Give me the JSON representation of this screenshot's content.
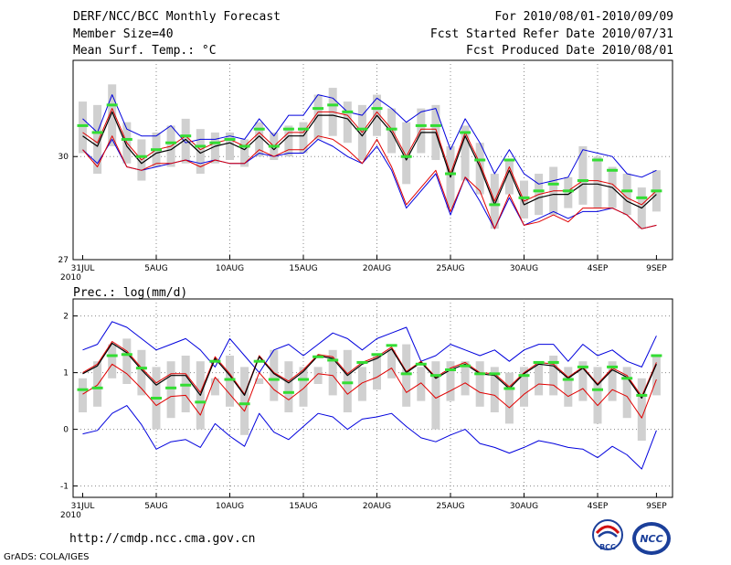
{
  "header": {
    "title": "DERF/NCC/BCC Monthly Forecast",
    "member_size": "Member Size=40",
    "variable_title": "Mean Surf. Temp.: °C",
    "forecast_period": "For 2010/08/01-2010/09/09",
    "started_refer": "Fcst Started Refer Date 2010/07/31",
    "produced": "Fcst Produced Date 2010/08/01"
  },
  "footer": {
    "url": "http://cmdp.ncc.cma.gov.cn",
    "grads": "GrADS: COLA/IGES",
    "logo_bcc_text": "BCC",
    "logo_ncc_text": "NCC"
  },
  "colors": {
    "ensemble_mean": "#000000",
    "member_median": "#e00000",
    "spread_bounds": "#0000dd",
    "box": "#d0d0d0",
    "marker": "#33dd33",
    "grid": "#888888"
  },
  "chart_data": [
    {
      "type": "line",
      "title": "Mean Surf. Temp.: °C",
      "x_tick_labels": [
        "31JUL",
        "5AUG",
        "10AUG",
        "15AUG",
        "20AUG",
        "25AUG",
        "30AUG",
        "4SEP",
        "9SEP"
      ],
      "x_year_label": "2010",
      "ylim": [
        27,
        32.8
      ],
      "y_ticks": [
        27,
        30
      ],
      "grid": true,
      "series": [
        {
          "name": "upper",
          "values": [
            31.1,
            30.7,
            31.8,
            30.8,
            30.6,
            30.6,
            30.9,
            30.4,
            30.5,
            30.5,
            30.6,
            30.5,
            31.1,
            30.6,
            31.2,
            31.2,
            31.8,
            31.7,
            31.3,
            31.2,
            31.7,
            31.4,
            31.0,
            31.3,
            31.4,
            30.2,
            31.1,
            30.4,
            29.5,
            30.2,
            29.5,
            29.2,
            29.3,
            29.4,
            30.2,
            30.1,
            30.0,
            29.5,
            29.4,
            29.6
          ]
        },
        {
          "name": "box_top",
          "values": [
            31.6,
            31.5,
            32.1,
            31.0,
            30.5,
            30.7,
            30.9,
            31.1,
            30.8,
            30.7,
            30.7,
            30.5,
            31.0,
            30.7,
            30.9,
            31.0,
            31.8,
            32.0,
            31.6,
            31.5,
            31.8,
            31.4,
            31.0,
            31.4,
            31.5,
            30.3,
            30.9,
            30.4,
            29.5,
            29.9,
            29.3,
            29.5,
            29.7,
            29.4,
            30.3,
            30.0,
            29.7,
            29.5,
            29.1,
            29.6
          ]
        },
        {
          "name": "marker",
          "values": [
            30.9,
            30.7,
            31.5,
            30.5,
            30.0,
            30.2,
            30.4,
            30.6,
            30.3,
            30.4,
            30.5,
            30.3,
            30.8,
            30.3,
            30.8,
            30.8,
            31.4,
            31.5,
            31.3,
            30.8,
            31.4,
            30.8,
            30.0,
            30.9,
            30.9,
            29.5,
            30.7,
            29.9,
            28.6,
            29.9,
            28.8,
            29.0,
            29.2,
            29.0,
            29.3,
            29.9,
            29.6,
            29.0,
            28.8,
            29.0
          ]
        },
        {
          "name": "ensemble_mean",
          "values": [
            30.6,
            30.3,
            31.3,
            30.3,
            29.8,
            30.1,
            30.2,
            30.5,
            30.1,
            30.3,
            30.4,
            30.2,
            30.6,
            30.2,
            30.6,
            30.6,
            31.2,
            31.2,
            31.1,
            30.6,
            31.2,
            30.7,
            29.9,
            30.7,
            30.7,
            29.4,
            30.6,
            29.7,
            28.6,
            29.6,
            28.6,
            28.8,
            28.9,
            28.9,
            29.2,
            29.2,
            29.1,
            28.7,
            28.5,
            28.9
          ]
        },
        {
          "name": "member_median",
          "values": [
            30.7,
            30.4,
            31.4,
            30.4,
            29.9,
            30.2,
            30.3,
            30.6,
            30.2,
            30.4,
            30.5,
            30.3,
            30.7,
            30.3,
            30.7,
            30.7,
            31.3,
            31.3,
            31.2,
            30.7,
            31.3,
            30.8,
            30.0,
            30.8,
            30.8,
            29.5,
            30.7,
            29.8,
            28.7,
            29.7,
            28.7,
            28.9,
            29.0,
            29.0,
            29.3,
            29.3,
            29.2,
            28.8,
            28.6,
            29.0
          ]
        },
        {
          "name": "box_bottom",
          "values": [
            30.1,
            29.5,
            30.3,
            29.8,
            29.3,
            29.7,
            29.7,
            29.8,
            29.5,
            29.8,
            29.9,
            29.7,
            30.0,
            29.9,
            30.0,
            30.1,
            30.5,
            30.6,
            30.4,
            29.9,
            30.6,
            30.1,
            29.2,
            30.1,
            29.9,
            28.5,
            29.3,
            28.9,
            27.9,
            28.9,
            28.2,
            28.3,
            28.3,
            28.5,
            28.6,
            28.5,
            28.5,
            28.3,
            27.9,
            28.4
          ]
        },
        {
          "name": "lower",
          "values": [
            30.2,
            29.7,
            30.6,
            29.7,
            29.6,
            29.8,
            29.8,
            29.9,
            29.7,
            29.9,
            29.8,
            29.8,
            30.2,
            30.0,
            30.2,
            30.2,
            30.6,
            30.5,
            30.2,
            29.8,
            30.5,
            29.7,
            28.6,
            29.1,
            29.6,
            28.4,
            29.4,
            29.0,
            27.9,
            28.9,
            28.0,
            28.1,
            28.3,
            28.1,
            28.5,
            28.5,
            28.5,
            28.3,
            27.9,
            28.0
          ]
        },
        {
          "name": "lowest",
          "values": [
            30.2,
            29.8,
            30.5,
            29.7,
            29.6,
            29.7,
            29.8,
            29.9,
            29.8,
            29.9,
            29.8,
            29.8,
            30.1,
            30.0,
            30.1,
            30.1,
            30.5,
            30.3,
            30.0,
            29.8,
            30.3,
            29.6,
            28.5,
            29.0,
            29.5,
            28.3,
            29.4,
            28.7,
            27.9,
            28.8,
            28.0,
            28.2,
            28.4,
            28.2,
            28.4,
            28.4,
            28.5,
            28.3,
            27.9,
            28.0
          ]
        }
      ]
    },
    {
      "type": "line",
      "title": "Prec.: log(mm/d)",
      "x_tick_labels": [
        "31JUL",
        "5AUG",
        "10AUG",
        "15AUG",
        "20AUG",
        "25AUG",
        "30AUG",
        "4SEP",
        "9SEP"
      ],
      "x_year_label": "2010",
      "ylim": [
        -1.2,
        2.3
      ],
      "y_ticks": [
        -1,
        0,
        1,
        2
      ],
      "grid": true,
      "series": [
        {
          "name": "upper",
          "values": [
            1.4,
            1.5,
            1.9,
            1.8,
            1.6,
            1.4,
            1.5,
            1.6,
            1.4,
            1.1,
            1.6,
            1.3,
            1.0,
            1.4,
            1.5,
            1.3,
            1.5,
            1.7,
            1.6,
            1.4,
            1.6,
            1.7,
            1.8,
            1.2,
            1.3,
            1.5,
            1.4,
            1.3,
            1.4,
            1.2,
            1.4,
            1.5,
            1.5,
            1.2,
            1.5,
            1.3,
            1.4,
            1.2,
            1.1,
            1.65
          ]
        },
        {
          "name": "box_top",
          "values": [
            0.9,
            1.2,
            1.5,
            1.6,
            1.4,
            1.1,
            1.2,
            1.3,
            1.2,
            0.9,
            1.3,
            1.1,
            0.9,
            1.4,
            1.2,
            1.1,
            1.1,
            1.4,
            1.4,
            1.1,
            1.3,
            1.4,
            1.5,
            1.1,
            1.2,
            1.2,
            1.2,
            1.2,
            1.1,
            1.0,
            1.1,
            1.2,
            1.3,
            1.1,
            1.2,
            1.1,
            1.2,
            1.1,
            0.9,
            1.3
          ]
        },
        {
          "name": "marker",
          "values": [
            0.7,
            0.73,
            1.3,
            1.32,
            1.08,
            0.55,
            0.73,
            0.78,
            0.48,
            1.2,
            0.88,
            0.45,
            1.2,
            0.88,
            0.65,
            0.88,
            1.28,
            1.22,
            0.82,
            1.18,
            1.32,
            1.48,
            0.98,
            1.15,
            0.95,
            1.05,
            1.12,
            0.98,
            0.98,
            0.72,
            0.95,
            1.18,
            1.18,
            0.88,
            1.1,
            0.7,
            1.1,
            0.9,
            0.6,
            1.3
          ]
        },
        {
          "name": "ensemble_mean",
          "values": [
            0.98,
            1.12,
            1.52,
            1.35,
            1.05,
            0.78,
            0.95,
            0.95,
            0.6,
            1.25,
            0.95,
            0.6,
            1.28,
            0.98,
            0.82,
            1.02,
            1.3,
            1.25,
            0.95,
            1.15,
            1.25,
            1.42,
            1.0,
            1.18,
            0.9,
            1.05,
            1.15,
            0.98,
            0.95,
            0.72,
            0.98,
            1.15,
            1.12,
            0.9,
            1.08,
            0.78,
            1.05,
            0.92,
            0.55,
            1.15
          ]
        },
        {
          "name": "member_median",
          "values": [
            1.0,
            1.15,
            1.55,
            1.38,
            1.08,
            0.82,
            0.98,
            0.98,
            0.65,
            1.28,
            0.98,
            0.62,
            1.3,
            1.0,
            0.85,
            1.05,
            1.32,
            1.28,
            0.98,
            1.18,
            1.28,
            1.45,
            1.02,
            1.2,
            0.92,
            1.08,
            1.18,
            1.0,
            0.98,
            0.75,
            1.0,
            1.18,
            1.15,
            0.92,
            1.1,
            0.8,
            1.08,
            0.95,
            0.58,
            1.18
          ]
        },
        {
          "name": "lower",
          "values": [
            0.62,
            0.78,
            1.15,
            0.98,
            0.72,
            0.42,
            0.58,
            0.6,
            0.25,
            0.92,
            0.62,
            0.32,
            1.0,
            0.7,
            0.52,
            0.72,
            0.98,
            0.95,
            0.62,
            0.82,
            0.92,
            1.08,
            0.65,
            0.82,
            0.55,
            0.68,
            0.82,
            0.65,
            0.6,
            0.38,
            0.62,
            0.8,
            0.78,
            0.58,
            0.72,
            0.42,
            0.7,
            0.58,
            0.2,
            0.88
          ]
        },
        {
          "name": "box_bottom",
          "values": [
            0.3,
            0.4,
            0.9,
            0.8,
            0.6,
            0.0,
            0.2,
            0.3,
            0.0,
            0.6,
            0.4,
            -0.1,
            0.8,
            0.5,
            0.3,
            0.4,
            0.8,
            0.6,
            0.3,
            0.5,
            0.7,
            0.9,
            0.4,
            0.5,
            0.0,
            0.5,
            0.6,
            0.4,
            0.3,
            0.1,
            0.4,
            0.6,
            0.6,
            0.4,
            0.5,
            0.1,
            0.5,
            0.2,
            -0.2,
            0.6
          ]
        },
        {
          "name": "lowest",
          "values": [
            -0.08,
            -0.02,
            0.28,
            0.42,
            0.08,
            -0.35,
            -0.22,
            -0.18,
            -0.32,
            0.1,
            -0.12,
            -0.3,
            0.28,
            -0.05,
            -0.18,
            0.05,
            0.28,
            0.22,
            0.0,
            0.18,
            0.22,
            0.28,
            0.05,
            -0.15,
            -0.22,
            -0.1,
            0.0,
            -0.25,
            -0.32,
            -0.42,
            -0.32,
            -0.2,
            -0.25,
            -0.32,
            -0.35,
            -0.5,
            -0.3,
            -0.45,
            -0.7,
            -0.02
          ]
        }
      ]
    }
  ]
}
